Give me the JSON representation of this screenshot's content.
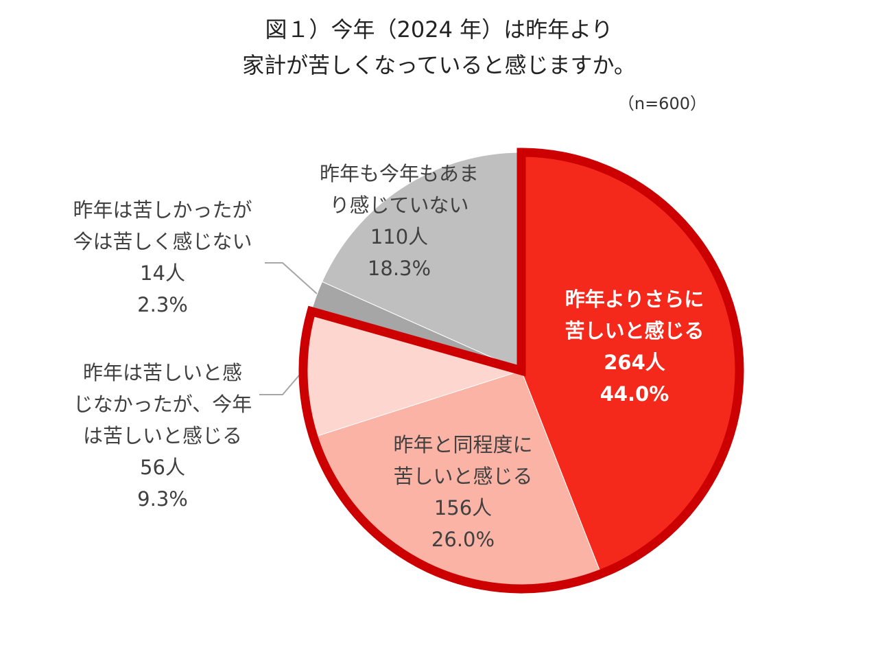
{
  "chart_data": {
    "type": "pie",
    "title": [
      "図１）今年（2024 年）は昨年より",
      "家計が苦しくなっていると感じますか。"
    ],
    "subtitle": "（n=600）",
    "categories": [
      [
        "昨年よりさらに",
        "苦しいと感じる"
      ],
      [
        "昨年と同程度に",
        "苦しいと感じる"
      ],
      [
        "昨年は苦しいと感",
        "じなかったが、今年",
        "は苦しいと感じる"
      ],
      [
        "昨年は苦しかったが",
        "今は苦しく感じない"
      ],
      [
        "昨年も今年もあま",
        "り感じていない"
      ]
    ],
    "values": [
      44.0,
      26.0,
      9.3,
      2.3,
      18.3
    ],
    "value_labels": [
      "44.0%",
      "26.0%",
      "9.3%",
      "2.3%",
      "18.3%"
    ],
    "count_labels": [
      "264人",
      "156人",
      "56人",
      "14人",
      "110人"
    ],
    "colors": [
      "#f4291c",
      "#fbb3a6",
      "#fdd6d0",
      "#a6a6a6",
      "#bfbfbf"
    ],
    "highlight": [
      0,
      1,
      2
    ],
    "highlight_color": "#cc0000"
  }
}
